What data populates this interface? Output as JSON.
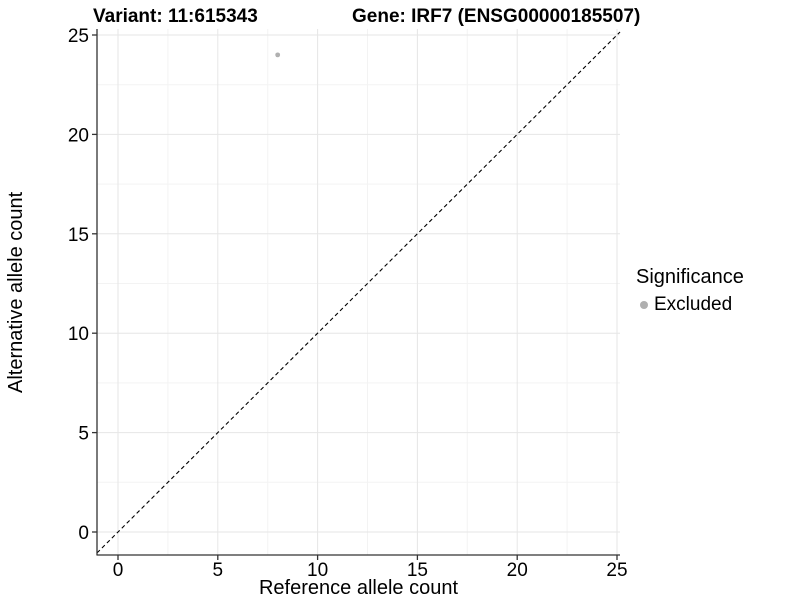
{
  "chart_data": {
    "type": "scatter",
    "title_left": "Variant: 11:615343",
    "title_right": "Gene: IRF7 (ENSG00000185507)",
    "xlabel": "Reference allele count",
    "ylabel": "Alternative allele count",
    "xticks": [
      0,
      5,
      10,
      15,
      20,
      25
    ],
    "yticks": [
      0,
      5,
      10,
      15,
      20,
      25
    ],
    "xlim": [
      -1.05,
      25.15
    ],
    "ylim": [
      -1.15,
      25.3
    ],
    "minor_step": 2.5,
    "grid": "major+minor",
    "points": [
      {
        "x": 8,
        "y": 24,
        "significance": "Excluded"
      }
    ],
    "identity_line": {
      "type": "y=x",
      "style": "dashed",
      "color": "#000000"
    },
    "legend": {
      "title": "Significance",
      "position": "right",
      "items": [
        {
          "label": "Excluded",
          "color": "#b0b0b0",
          "marker": "circle"
        }
      ]
    },
    "colors": {
      "point": "#b0b0b0",
      "grid_major": "#e6e6e6",
      "grid_minor": "#f3f3f3",
      "axis": "#333333",
      "background": "#ffffff"
    }
  }
}
